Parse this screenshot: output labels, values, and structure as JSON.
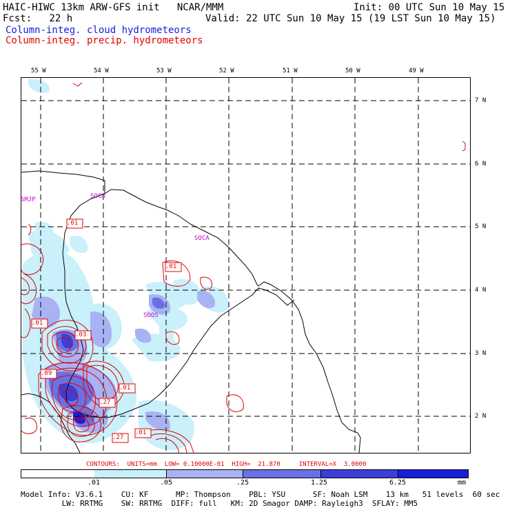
{
  "header": {
    "title": "HAIC-HIWC 13km ARW-GFS init   NCAR/MMM",
    "fcst": "Fcst:   22 h",
    "init": "Init: 00 UTC Sun 10 May 15",
    "valid": "Valid: 22 UTC Sun 10 May 15 (19 LST Sun 10 May 15)",
    "legend_cloud": "Column-integ. cloud hydrometeors",
    "legend_precip": "Column-integ. precip. hydrometeors"
  },
  "colors": {
    "cloud_text": "#1a1adc",
    "precip_text": "#e00000",
    "station_text": "#cc00cc",
    "fill_1": "#c9f0fb",
    "fill_2": "#a9b2f2",
    "fill_3": "#6a71e4",
    "fill_4": "#3b3fd8",
    "fill_5": "#1c1cdc"
  },
  "longitudes": [
    "55 W",
    "54 W",
    "53 W",
    "52 W",
    "51 W",
    "50 W",
    "49 W"
  ],
  "latitudes": [
    "7 N",
    "6 N",
    "5 N",
    "4 N",
    "3 N",
    "2 N"
  ],
  "stations": [
    "SMJP",
    "SOCM",
    "SOCA",
    "SOOS"
  ],
  "contour_labels": [
    ".01",
    ".01",
    ".01",
    ".03",
    ".09",
    ".01",
    ".27",
    ".27",
    ".01"
  ],
  "contours_info": "CONTOURS:  UNITS=mm  LOW= 0.10000E-01  HIGH=  21.870     INTERVAL=X  3.0000",
  "colorbar": {
    "ticks": [
      ".01",
      ".05",
      ".25",
      "1.25",
      "6.25"
    ],
    "units": "mm"
  },
  "footer": {
    "line1": "Model Info: V3.6.1    CU: KF      MP: Thompson    PBL: YSU      SF: Noah LSM    13 km   51 levels  60 sec",
    "line2": "         LW: RRTMG    SW: RRTMG  DIFF: full   KM: 2D Smagor DAMP: Rayleigh3  SFLAY: MM5"
  }
}
